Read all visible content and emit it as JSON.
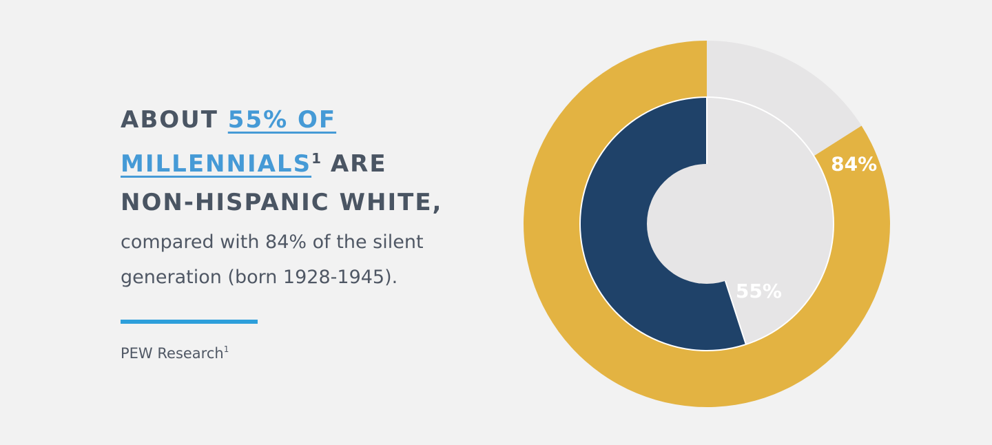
{
  "headline": {
    "prefix": "ABOUT ",
    "highlight_line1": "55% OF",
    "highlight_line2": "MILLENNIALS",
    "footnote_mark": "1",
    "line2_suffix": " ARE",
    "line3": "NON-HISPANIC WHITE,"
  },
  "body_text": "compared with 84% of the silent generation (born 1928-1945).",
  "source": {
    "label": "PEW Research",
    "footnote_mark": "1"
  },
  "colors": {
    "background": "#f2f2f2",
    "outer_fill": "#e3b342",
    "inner_fill": "#1f4269",
    "remainder": "#e6e5e6",
    "highlight_text": "#459ad6",
    "accent_rule": "#2d9fdb"
  },
  "chart_data": {
    "type": "pie",
    "subtype": "nested-donut",
    "series": [
      {
        "name": "",
        "ring": "outer",
        "value": 84,
        "label": "84%"
      },
      {
        "name": "",
        "ring": "inner",
        "value": 55,
        "label": "55%"
      }
    ],
    "unit": "%"
  }
}
